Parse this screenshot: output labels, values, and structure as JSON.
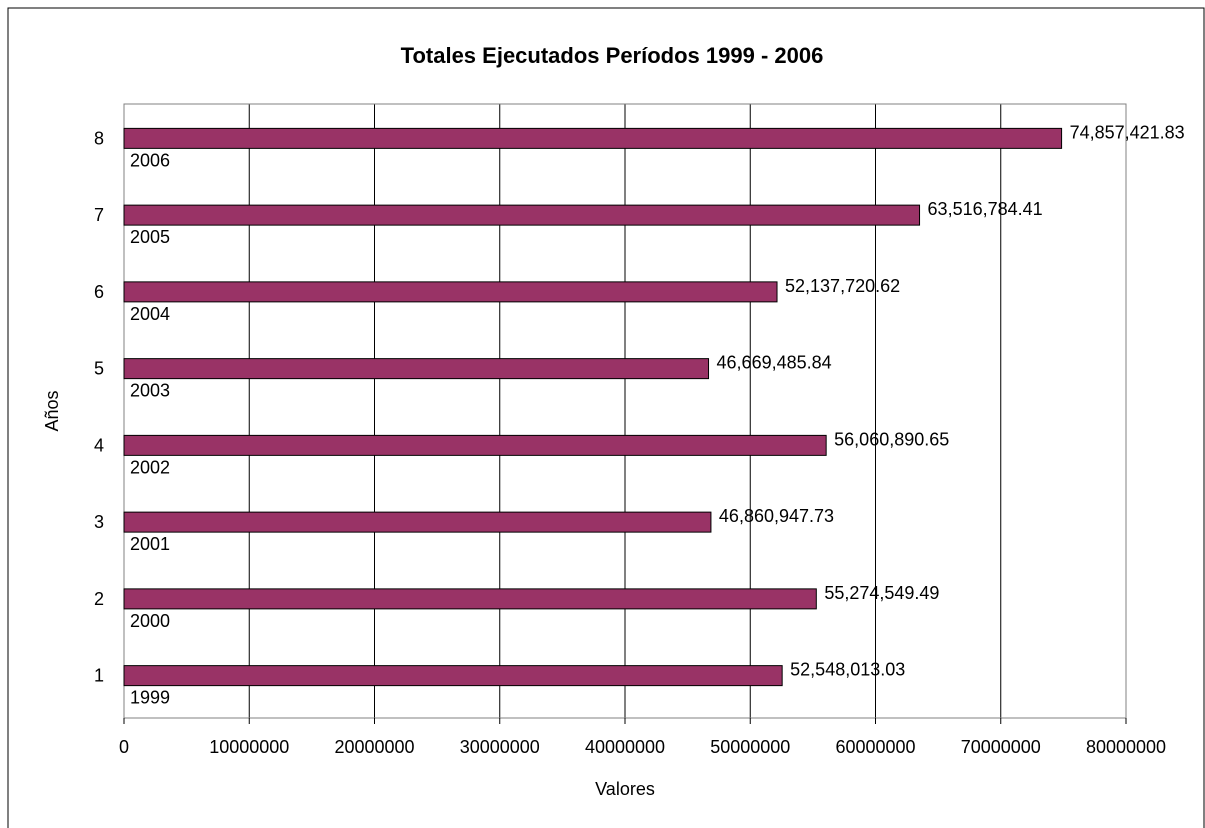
{
  "chart_data": {
    "type": "bar",
    "orientation": "horizontal",
    "title": "Totales Ejecutados Períodos 1999 - 2006",
    "xlabel": "Valores",
    "ylabel": "Años",
    "categories": [
      "1",
      "2",
      "3",
      "4",
      "5",
      "6",
      "7",
      "8"
    ],
    "category_labels": [
      "1999",
      "2000",
      "2001",
      "2002",
      "2003",
      "2004",
      "2005",
      "2006"
    ],
    "values": [
      52548013.03,
      55274549.49,
      46860947.73,
      56060890.65,
      46669485.84,
      52137720.62,
      63516784.41,
      74857421.83
    ],
    "data_labels": [
      "52,548,013.03",
      "55,274,549.49",
      "46,860,947.73",
      "56,060,890.65",
      "46,669,485.84",
      "52,137,720.62",
      "63,516,784.41",
      "74,857,421.83"
    ],
    "xlim": [
      0,
      80000000
    ],
    "x_ticks": [
      0,
      10000000,
      20000000,
      30000000,
      40000000,
      50000000,
      60000000,
      70000000,
      80000000
    ],
    "x_tick_labels": [
      "0",
      "10000000",
      "20000000",
      "30000000",
      "40000000",
      "50000000",
      "60000000",
      "70000000",
      "80000000"
    ],
    "grid": "vertical",
    "legend": "none",
    "colors": {
      "bar": "#993366",
      "bar_border": "#000000",
      "grid": "#000000",
      "frame": "#808080",
      "background": "#ffffff"
    }
  }
}
